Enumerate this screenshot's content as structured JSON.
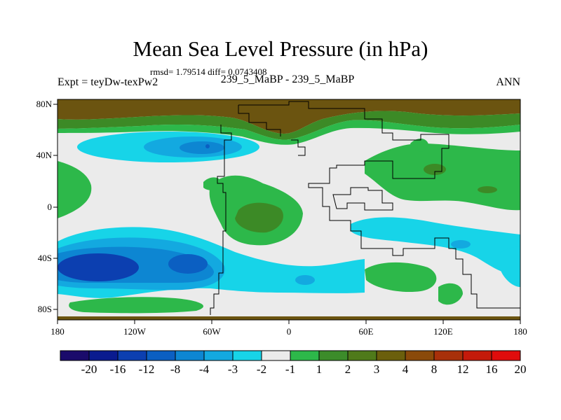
{
  "title": "Mean Sea Level Pressure (in hPa)",
  "stats_text": "rmsd= 1.79514 diff= 0.0743408",
  "experiment_label": "Expt = teyDw-texPw2",
  "comparison_label": "239_5_MaBP - 239_5_MaBP",
  "period_label": "ANN",
  "y_ticks": [
    "80N",
    "40N",
    "0",
    "40S",
    "80S"
  ],
  "x_ticks": [
    "180",
    "120W",
    "60W",
    "0",
    "60E",
    "120E",
    "180"
  ],
  "colorbar": {
    "labels": [
      "-20",
      "-16",
      "-12",
      "-8",
      "-4",
      "-3",
      "-2",
      "-1",
      "1",
      "2",
      "3",
      "4",
      "8",
      "12",
      "16",
      "20"
    ],
    "colors": [
      "#1a0b6b",
      "#0a1b8f",
      "#0c3fb0",
      "#0b5fc2",
      "#0d86d2",
      "#13a9e0",
      "#17d4e8",
      "#ebebeb",
      "#2db84a",
      "#3c8c2a",
      "#4f7a1a",
      "#6b5f0c",
      "#8a4a0a",
      "#a8300a",
      "#c41a0a",
      "#e00c0c"
    ]
  },
  "map": {
    "projection": "cylindrical-equidistant",
    "lon_range": [
      -180,
      180
    ],
    "lat_range": [
      -90,
      90
    ],
    "colors": {
      "background": "#ebebeb",
      "brown": "#6b5410",
      "dark_green": "#3c8a26",
      "green": "#2db84a",
      "cyan": "#17d4e8",
      "light_blue": "#13a9e0",
      "blue": "#0b5fc2",
      "dark_blue": "#0c3fb0"
    }
  }
}
